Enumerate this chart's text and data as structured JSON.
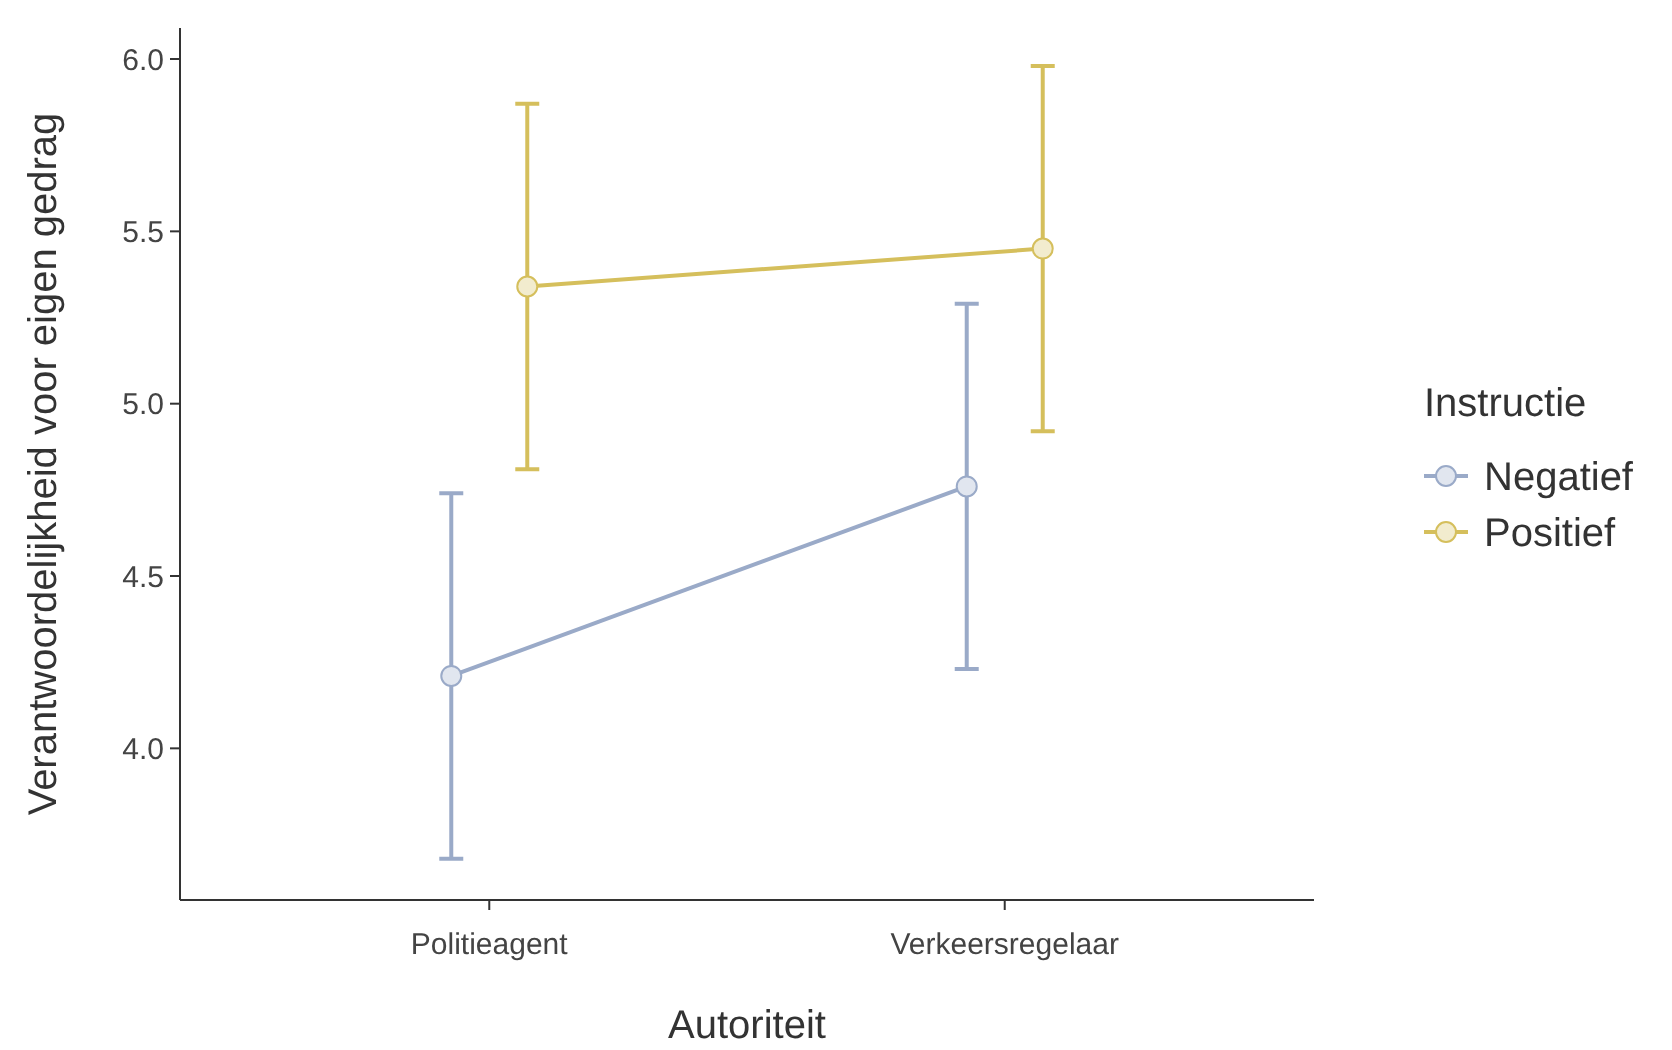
{
  "chart_data": {
    "type": "line",
    "xlabel": "Autoriteit",
    "ylabel": "Verantwoordelijkheid voor eigen gedrag",
    "legend_title": "Instructie",
    "categories": [
      "Politieagent",
      "Verkeersregelaar"
    ],
    "series": [
      {
        "name": "Negatief",
        "color": "#9aaac8",
        "values": [
          4.21,
          4.76
        ],
        "errors": [
          [
            3.68,
            4.74
          ],
          [
            4.23,
            5.29
          ]
        ]
      },
      {
        "name": "Positief",
        "color": "#d5bf5c",
        "values": [
          5.34,
          5.45
        ],
        "errors": [
          [
            4.81,
            5.87
          ],
          [
            4.92,
            5.98
          ]
        ]
      }
    ],
    "ylim": [
      3.56,
      6.09
    ],
    "yticks": [
      {
        "value": 4,
        "label": "4.0"
      },
      {
        "value": 4.5,
        "label": "4.5"
      },
      {
        "value": 5,
        "label": "5.0"
      },
      {
        "value": 5.5,
        "label": "5.5"
      },
      {
        "value": 6,
        "label": "6.0"
      }
    ],
    "grid": false,
    "legend": "right",
    "marker": "circle",
    "line_style": "solid"
  }
}
